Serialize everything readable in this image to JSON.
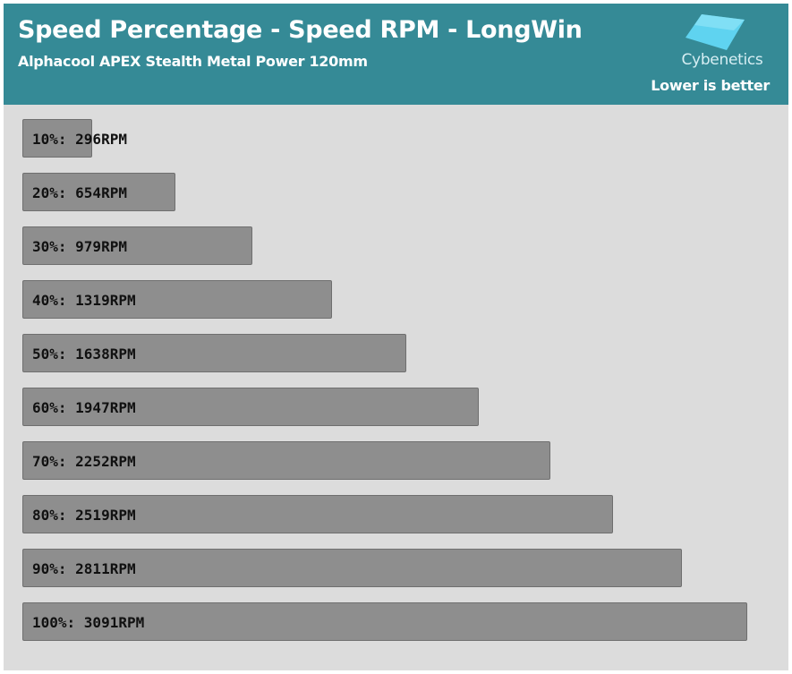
{
  "header": {
    "title": "Speed Percentage - Speed RPM - LongWin",
    "subtitle": "Alphacool APEX Stealth Metal Power 120mm",
    "logo_text": "Cybenetics",
    "note": "Lower is better"
  },
  "colors": {
    "header_bg": "#358a96",
    "plot_bg": "#dcdcdc",
    "bar_fill": "#8e8e8e",
    "logo_accent": "#5fd3f0"
  },
  "chart_data": {
    "type": "bar",
    "orientation": "horizontal",
    "categories": [
      "10%",
      "20%",
      "30%",
      "40%",
      "50%",
      "60%",
      "70%",
      "80%",
      "90%",
      "100%"
    ],
    "values": [
      296,
      654,
      979,
      1319,
      1638,
      1947,
      2252,
      2519,
      2811,
      3091
    ],
    "labels": [
      "10%: 296RPM",
      "20%: 654RPM",
      "30%: 979RPM",
      "40%: 1319RPM",
      "50%: 1638RPM",
      "60%: 1947RPM",
      "70%: 2252RPM",
      "80%: 2519RPM",
      "90%: 2811RPM",
      "100%: 3091RPM"
    ],
    "unit": "RPM",
    "xlim": [
      0,
      3091
    ],
    "grid": false,
    "legend": "none"
  }
}
